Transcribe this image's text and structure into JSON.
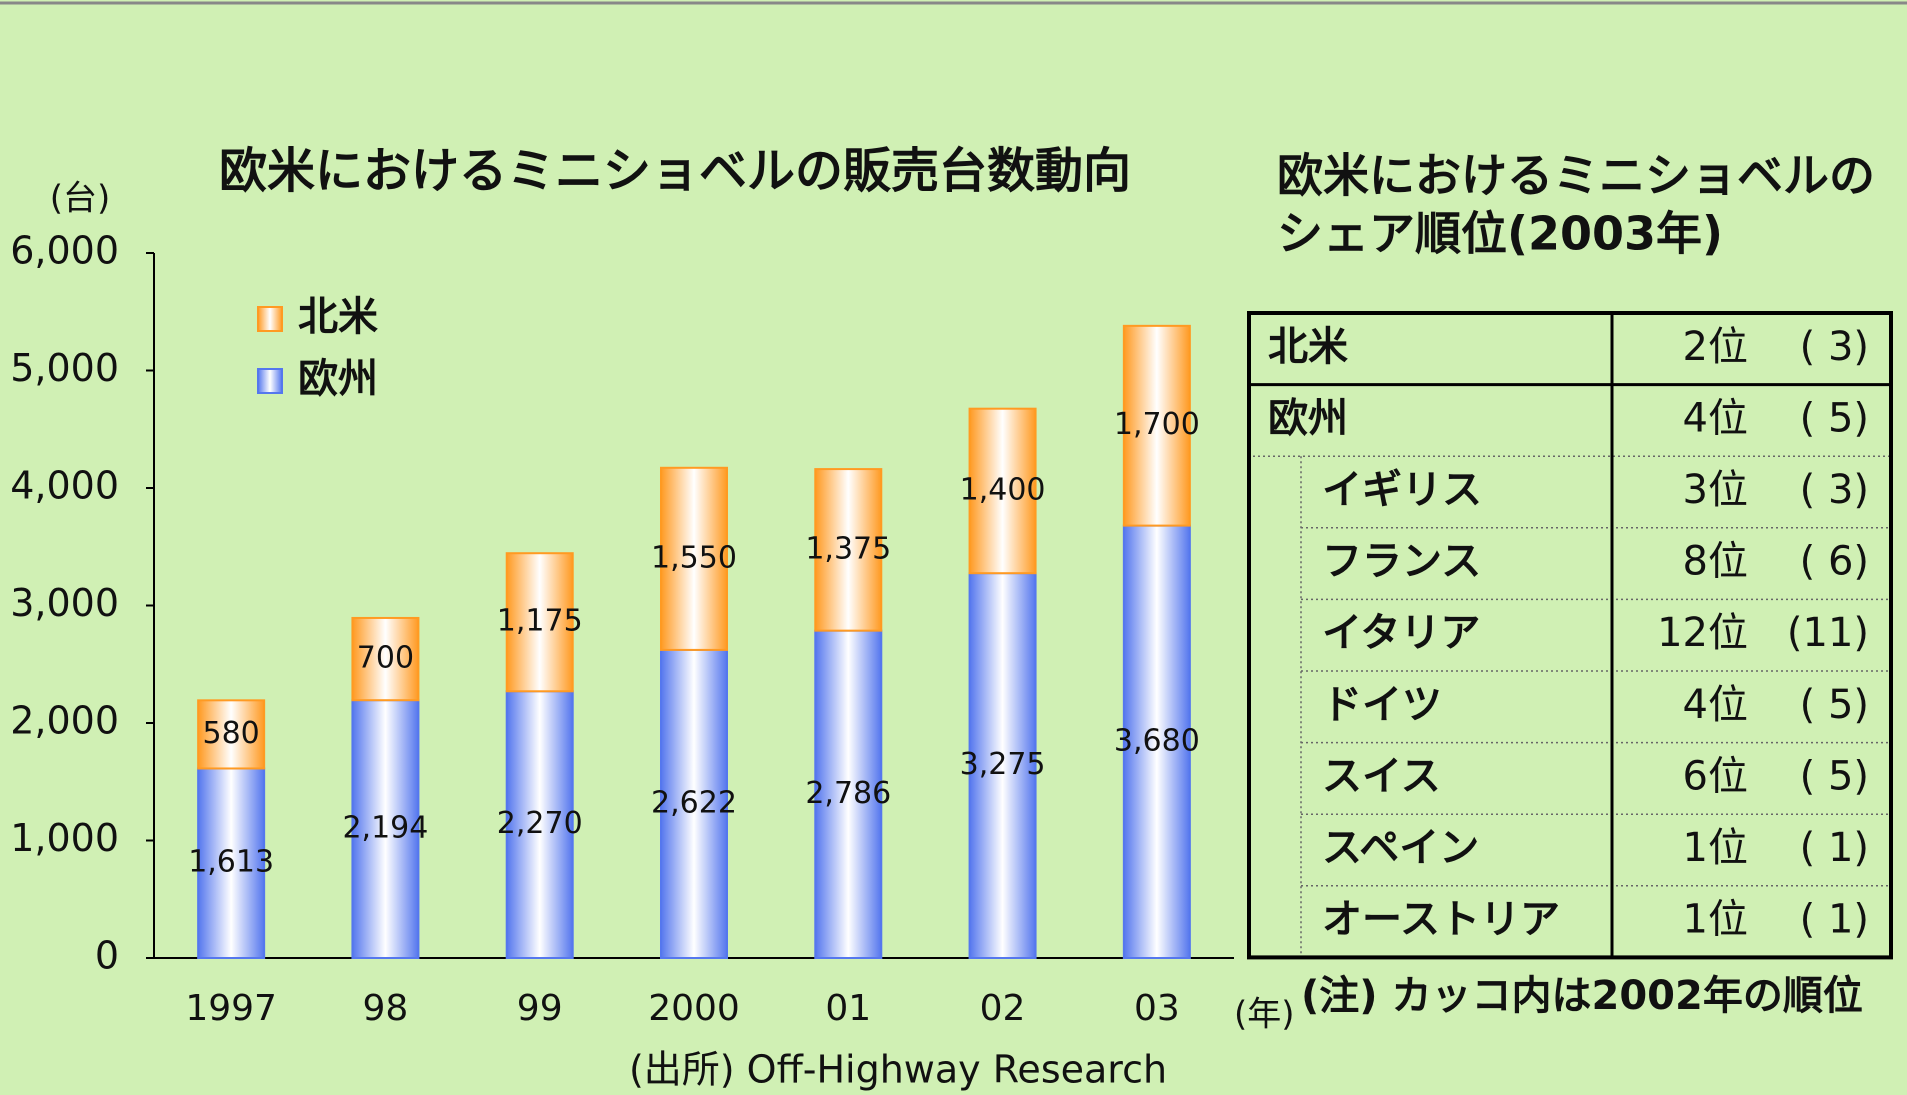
{
  "chart_data": {
    "type": "bar",
    "stacked": true,
    "title": "欧米におけるミニショベルの販売台数動向",
    "y_unit": "(台)",
    "x_unit": "(年)",
    "source": "(出所) Off-Highway Research",
    "categories": [
      "1997",
      "98",
      "99",
      "2000",
      "01",
      "02",
      "03"
    ],
    "series": [
      {
        "name": "欧州",
        "color": "#5577ee",
        "values": [
          1613,
          2194,
          2270,
          2622,
          2786,
          3275,
          3680
        ],
        "value_labels": [
          "1,613",
          "2,194",
          "2,270",
          "2,622",
          "2,786",
          "3,275",
          "3,680"
        ]
      },
      {
        "name": "北米",
        "color": "#ff9a22",
        "values": [
          580,
          700,
          1175,
          1550,
          1375,
          1400,
          1700
        ],
        "value_labels": [
          "580",
          "700",
          "1,175",
          "1,550",
          "1,375",
          "1,400",
          "1,700"
        ]
      }
    ],
    "ylim": [
      0,
      6000
    ],
    "yticks": [
      0,
      {
        "value": 1000,
        "label": "1,000"
      },
      {
        "value": 2000,
        "label": "2,000"
      },
      {
        "value": 3000,
        "label": "3,000"
      },
      {
        "value": 4000,
        "label": "4,000"
      },
      {
        "value": 5000,
        "label": "5,000"
      },
      {
        "value": 6000,
        "label": "6,000"
      }
    ],
    "grid": false
  },
  "table": {
    "title": [
      "欧米におけるミニショベルの",
      "シェア順位(2003年)"
    ],
    "rows": [
      {
        "label": "北米",
        "rank": "2位",
        "prev": "( 3)"
      },
      {
        "label": "欧州",
        "rank": "4位",
        "prev": "( 5)",
        "children": [
          {
            "label": "イギリス",
            "rank": "3位",
            "prev": "( 3)"
          },
          {
            "label": "フランス",
            "rank": "8位",
            "prev": "( 6)"
          },
          {
            "label": "イタリア",
            "rank": "12位",
            "prev": "(11)"
          },
          {
            "label": "ドイツ",
            "rank": "4位",
            "prev": "( 5)"
          },
          {
            "label": "スイス",
            "rank": "6位",
            "prev": "( 5)"
          },
          {
            "label": "スペイン",
            "rank": "1位",
            "prev": "( 1)"
          },
          {
            "label": "オーストリア",
            "rank": "1位",
            "prev": "( 1)"
          }
        ]
      }
    ],
    "note": "(注) カッコ内は2002年の順位"
  }
}
